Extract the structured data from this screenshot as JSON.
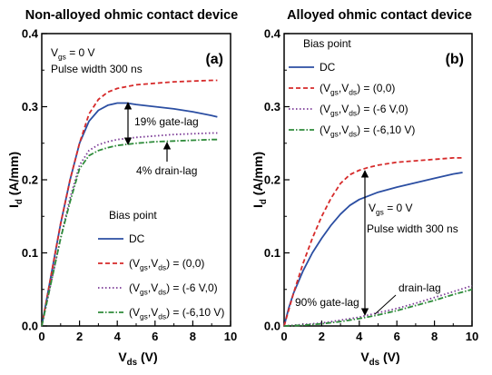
{
  "chart_data": [
    {
      "type": "line",
      "title": "Non-alloyed ohmic contact device",
      "panel_label": "(a)",
      "xlabel": "V<sub>ds</sub> (V)",
      "ylabel": "I<sub>d</sub> (A/mm)",
      "xlim": [
        0,
        10
      ],
      "ylim": [
        0,
        0.4
      ],
      "xticks": [
        "0",
        "2",
        "4",
        "6",
        "8",
        "10"
      ],
      "yticks": [
        "0.0",
        "0.1",
        "0.2",
        "0.3",
        "0.4"
      ],
      "grid": false,
      "annotations": [
        "V<sub>gs</sub> = 0 V",
        "Pulse width 300 ns",
        "19% gate-lag",
        "4% drain-lag"
      ],
      "legend": {
        "title": "Bias point",
        "placement": "bottom-right",
        "entries": [
          "DC",
          "(V<sub>gs</sub>,V<sub>ds</sub>) = (0,0)",
          "(V<sub>gs</sub>,V<sub>ds</sub>) = (-6 V,0)",
          "(V<sub>gs</sub>,V<sub>ds</sub>) = (-6,10 V)"
        ]
      },
      "series": [
        {
          "color": "#2b4ea2",
          "dash": "solid",
          "x": [
            0,
            0.5,
            1,
            1.5,
            2,
            2.5,
            3,
            3.5,
            4,
            4.5,
            5,
            6,
            7,
            8,
            9,
            9.3
          ],
          "y": [
            0,
            0.07,
            0.14,
            0.2,
            0.25,
            0.28,
            0.295,
            0.302,
            0.305,
            0.305,
            0.303,
            0.3,
            0.297,
            0.293,
            0.288,
            0.286
          ]
        },
        {
          "color": "#d62a2a",
          "dash": "dashed",
          "x": [
            0,
            0.5,
            1,
            1.5,
            2,
            2.5,
            3,
            3.5,
            4,
            5,
            6,
            7,
            8,
            9,
            9.3
          ],
          "y": [
            0,
            0.07,
            0.14,
            0.2,
            0.25,
            0.29,
            0.31,
            0.32,
            0.325,
            0.33,
            0.332,
            0.334,
            0.335,
            0.336,
            0.336
          ]
        },
        {
          "color": "#7b3a96",
          "dash": "dotted",
          "x": [
            0,
            0.5,
            1,
            1.5,
            2,
            2.5,
            3,
            3.5,
            4,
            5,
            6,
            7,
            8,
            9,
            9.3
          ],
          "y": [
            0,
            0.06,
            0.12,
            0.175,
            0.22,
            0.24,
            0.248,
            0.252,
            0.255,
            0.258,
            0.26,
            0.262,
            0.263,
            0.264,
            0.264
          ]
        },
        {
          "color": "#2e8b3a",
          "dash": "dashdot",
          "x": [
            0,
            0.5,
            1,
            1.5,
            2,
            2.5,
            3,
            3.5,
            4,
            5,
            6,
            7,
            8,
            9,
            9.3
          ],
          "y": [
            0,
            0.06,
            0.12,
            0.17,
            0.215,
            0.233,
            0.24,
            0.244,
            0.247,
            0.25,
            0.252,
            0.253,
            0.254,
            0.255,
            0.255
          ]
        }
      ]
    },
    {
      "type": "line",
      "title": "Alloyed ohmic contact device",
      "panel_label": "(b)",
      "xlabel": "V<sub>ds</sub> (V)",
      "ylabel": "I<sub>d</sub> (A/mm)",
      "xlim": [
        0,
        10
      ],
      "ylim": [
        0,
        0.4
      ],
      "xticks": [
        "0",
        "2",
        "4",
        "6",
        "8",
        "10"
      ],
      "yticks": [
        "0.0",
        "0.1",
        "0.2",
        "0.3",
        "0.4"
      ],
      "grid": false,
      "annotations": [
        "V<sub>gs</sub> = 0 V",
        "Pulse width 300 ns",
        "drain-lag",
        "90% gate-lag"
      ],
      "legend": {
        "title": "Bias point",
        "placement": "top-left",
        "entries": [
          "DC",
          "(V<sub>gs</sub>,V<sub>ds</sub>) = (0,0)",
          "(V<sub>gs</sub>,V<sub>ds</sub>) = (-6 V,0)",
          "(V<sub>gs</sub>,V<sub>ds</sub>) = (-6,10 V)"
        ]
      },
      "series": [
        {
          "color": "#2b4ea2",
          "dash": "solid",
          "x": [
            0,
            0.25,
            0.5,
            1,
            1.5,
            2,
            2.5,
            3,
            3.5,
            4,
            5,
            6,
            7,
            8,
            9,
            9.5
          ],
          "y": [
            0,
            0.025,
            0.045,
            0.075,
            0.1,
            0.12,
            0.138,
            0.153,
            0.165,
            0.173,
            0.183,
            0.19,
            0.196,
            0.202,
            0.208,
            0.21
          ]
        },
        {
          "color": "#d62a2a",
          "dash": "dashed",
          "x": [
            0,
            0.5,
            1,
            1.5,
            2,
            2.5,
            3,
            3.5,
            4,
            4.5,
            5,
            6,
            7,
            8,
            9,
            9.5
          ],
          "y": [
            0,
            0.045,
            0.085,
            0.12,
            0.15,
            0.175,
            0.195,
            0.207,
            0.213,
            0.217,
            0.22,
            0.224,
            0.226,
            0.228,
            0.23,
            0.23
          ]
        },
        {
          "color": "#7b3a96",
          "dash": "dotted",
          "x": [
            0,
            1,
            2,
            3,
            4,
            5,
            6,
            7,
            8,
            9,
            10
          ],
          "y": [
            0,
            0.002,
            0.004,
            0.008,
            0.012,
            0.018,
            0.024,
            0.031,
            0.039,
            0.047,
            0.055
          ]
        },
        {
          "color": "#2e8b3a",
          "dash": "dashdot",
          "x": [
            0,
            1,
            2,
            3,
            4,
            5,
            6,
            7,
            8,
            9,
            10
          ],
          "y": [
            0,
            0.001,
            0.003,
            0.006,
            0.01,
            0.015,
            0.021,
            0.028,
            0.035,
            0.043,
            0.05
          ]
        }
      ]
    }
  ]
}
